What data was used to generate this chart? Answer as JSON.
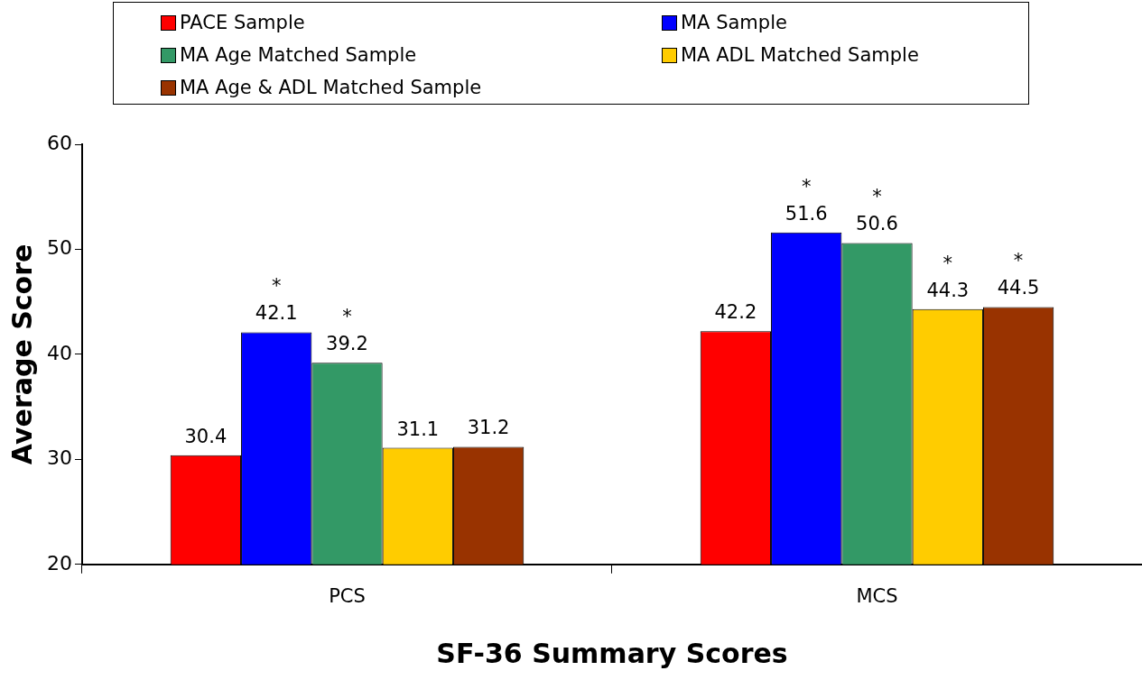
{
  "chart_data": {
    "type": "bar",
    "xlabel": "SF-36 Summary Scores",
    "ylabel": "Average Score",
    "categories": [
      "PCS",
      "MCS"
    ],
    "series": [
      {
        "name": "PACE Sample",
        "color": "#ff0000",
        "values": [
          30.4,
          42.2
        ],
        "value_labels": [
          "30.4",
          "42.2"
        ]
      },
      {
        "name": "MA Sample",
        "color": "#0000ff",
        "values": [
          42.1,
          51.6
        ],
        "value_labels": [
          "*\n42.1",
          "*\n51.6"
        ]
      },
      {
        "name": "MA Age Matched Sample",
        "color": "#339966",
        "values": [
          39.2,
          50.6
        ],
        "value_labels": [
          "*\n39.2",
          "*\n50.6"
        ]
      },
      {
        "name": "MA ADL Matched Sample",
        "color": "#ffcc00",
        "values": [
          31.1,
          44.3
        ],
        "value_labels": [
          "31.1",
          "*\n44.3"
        ]
      },
      {
        "name": "MA Age & ADL Matched Sample",
        "color": "#993300",
        "values": [
          31.2,
          44.5
        ],
        "value_labels": [
          "31.2",
          "*\n44.5"
        ]
      }
    ],
    "ylim": [
      20,
      60
    ],
    "yticks": [
      20,
      30,
      40,
      50,
      60
    ],
    "grid": false,
    "legend": "top"
  }
}
